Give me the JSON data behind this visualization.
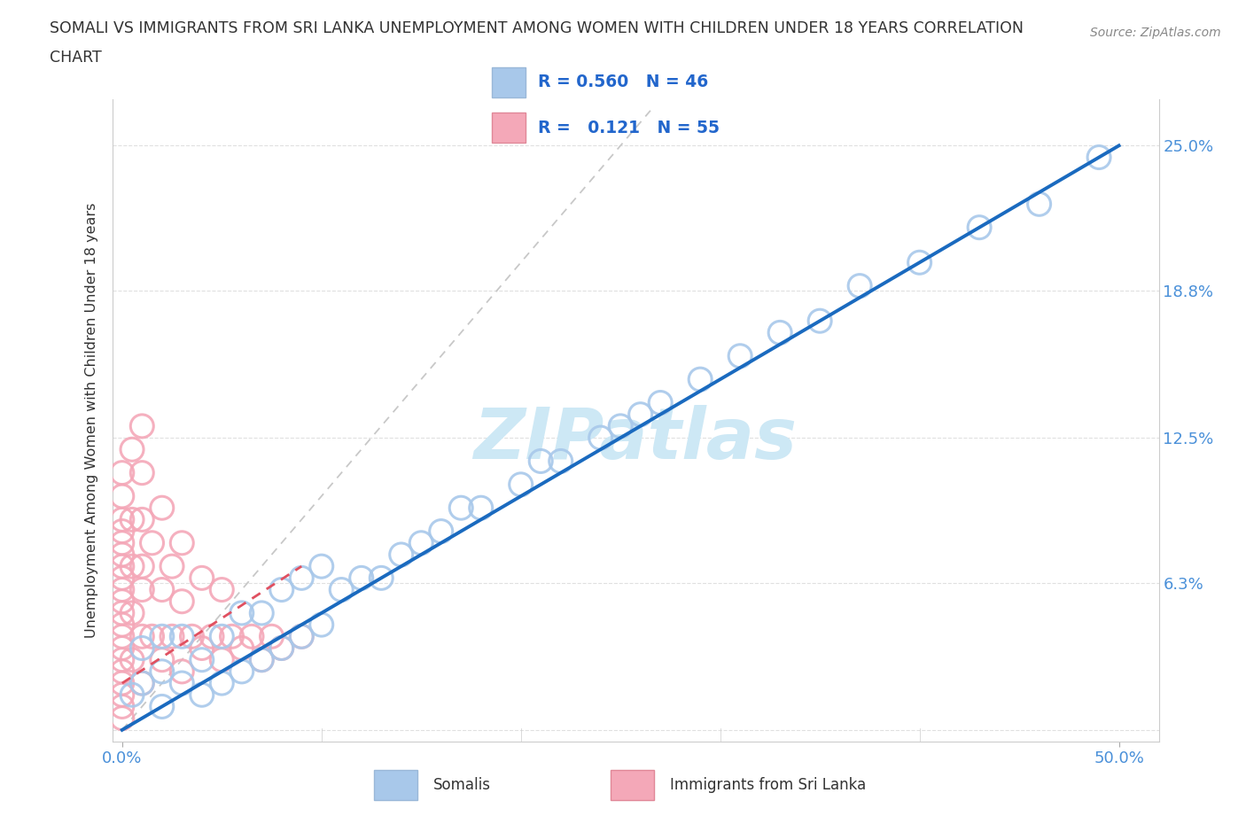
{
  "title_line1": "SOMALI VS IMMIGRANTS FROM SRI LANKA UNEMPLOYMENT AMONG WOMEN WITH CHILDREN UNDER 18 YEARS CORRELATION",
  "title_line2": "CHART",
  "source_text": "Source: ZipAtlas.com",
  "ylabel": "Unemployment Among Women with Children Under 18 years",
  "y_tick_vals": [
    0.0,
    0.063,
    0.125,
    0.188,
    0.25
  ],
  "y_tick_labs": [
    "",
    "6.3%",
    "12.5%",
    "18.8%",
    "25.0%"
  ],
  "xlim": [
    -0.005,
    0.52
  ],
  "ylim": [
    -0.005,
    0.27
  ],
  "somali_color": "#a8c8ea",
  "srilanka_color": "#f4a8b8",
  "somali_line_color": "#1a6abf",
  "srilanka_line_color": "#e05060",
  "diagonal_color": "#c8c8c8",
  "bg_color": "#ffffff",
  "watermark_color": "#cde8f5",
  "somali_R": 0.56,
  "somali_N": 46,
  "srilanka_R": 0.121,
  "srilanka_N": 55,
  "legend_somali": "Somalis",
  "legend_srilanka": "Immigrants from Sri Lanka",
  "somali_x": [
    0.005,
    0.01,
    0.01,
    0.02,
    0.02,
    0.02,
    0.03,
    0.03,
    0.04,
    0.04,
    0.05,
    0.05,
    0.06,
    0.06,
    0.07,
    0.07,
    0.08,
    0.08,
    0.09,
    0.09,
    0.1,
    0.1,
    0.11,
    0.12,
    0.13,
    0.14,
    0.15,
    0.16,
    0.17,
    0.18,
    0.2,
    0.21,
    0.22,
    0.24,
    0.25,
    0.26,
    0.27,
    0.29,
    0.31,
    0.33,
    0.35,
    0.37,
    0.4,
    0.43,
    0.46,
    0.49
  ],
  "somali_y": [
    0.015,
    0.02,
    0.035,
    0.01,
    0.025,
    0.04,
    0.02,
    0.04,
    0.015,
    0.03,
    0.02,
    0.04,
    0.025,
    0.05,
    0.03,
    0.05,
    0.035,
    0.06,
    0.04,
    0.065,
    0.045,
    0.07,
    0.06,
    0.065,
    0.065,
    0.075,
    0.08,
    0.085,
    0.095,
    0.095,
    0.105,
    0.115,
    0.115,
    0.125,
    0.13,
    0.135,
    0.14,
    0.15,
    0.16,
    0.17,
    0.175,
    0.19,
    0.2,
    0.215,
    0.225,
    0.245
  ],
  "srilanka_x": [
    0.0,
    0.0,
    0.0,
    0.0,
    0.0,
    0.0,
    0.0,
    0.0,
    0.0,
    0.0,
    0.0,
    0.0,
    0.0,
    0.0,
    0.0,
    0.0,
    0.0,
    0.0,
    0.0,
    0.0,
    0.005,
    0.005,
    0.005,
    0.005,
    0.005,
    0.01,
    0.01,
    0.01,
    0.01,
    0.01,
    0.01,
    0.01,
    0.015,
    0.015,
    0.02,
    0.02,
    0.02,
    0.025,
    0.025,
    0.03,
    0.03,
    0.03,
    0.035,
    0.04,
    0.04,
    0.045,
    0.05,
    0.05,
    0.055,
    0.06,
    0.065,
    0.07,
    0.075,
    0.08,
    0.09
  ],
  "srilanka_y": [
    0.005,
    0.01,
    0.015,
    0.02,
    0.025,
    0.03,
    0.035,
    0.04,
    0.045,
    0.05,
    0.055,
    0.06,
    0.065,
    0.07,
    0.075,
    0.08,
    0.085,
    0.09,
    0.1,
    0.11,
    0.03,
    0.05,
    0.07,
    0.09,
    0.12,
    0.02,
    0.04,
    0.06,
    0.07,
    0.09,
    0.11,
    0.13,
    0.04,
    0.08,
    0.03,
    0.06,
    0.095,
    0.04,
    0.07,
    0.025,
    0.055,
    0.08,
    0.04,
    0.035,
    0.065,
    0.04,
    0.03,
    0.06,
    0.04,
    0.035,
    0.04,
    0.03,
    0.04,
    0.035,
    0.04
  ],
  "somali_line_x": [
    0.0,
    0.5
  ],
  "somali_line_y": [
    0.0,
    0.25
  ],
  "srilanka_line_x": [
    0.0,
    0.09
  ],
  "srilanka_line_y": [
    0.02,
    0.07
  ]
}
